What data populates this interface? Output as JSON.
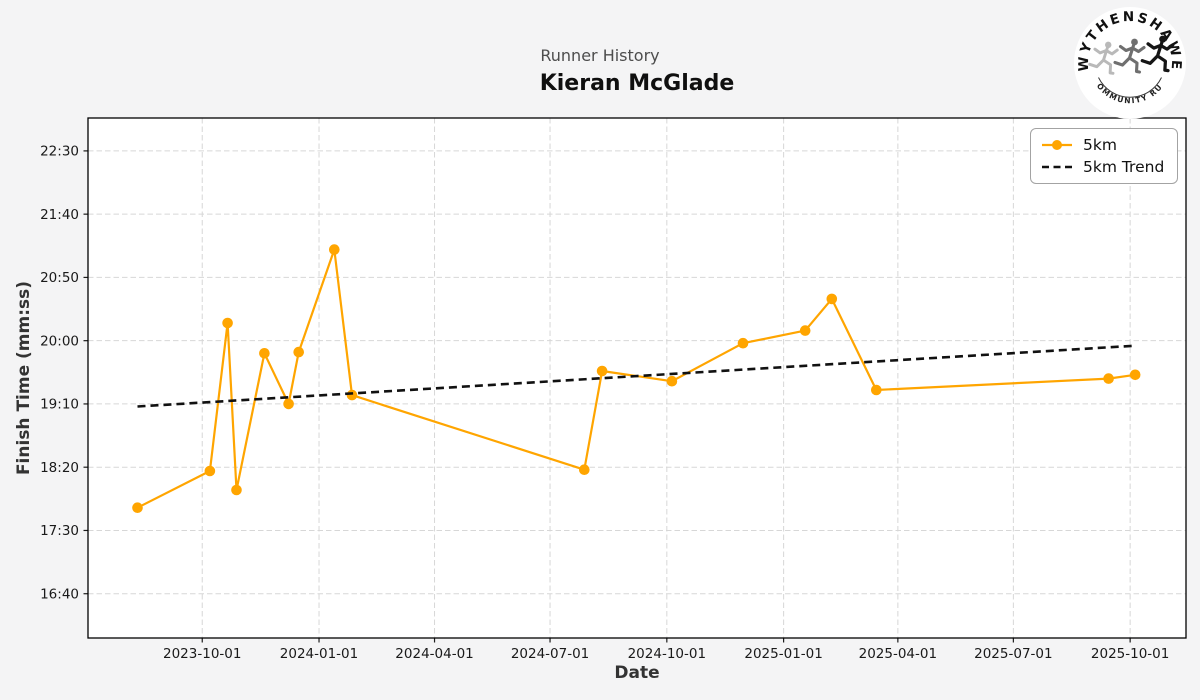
{
  "logo": {
    "top_text": "WYTHENSHAWE",
    "bottom_text": "COMMUNITY RUN"
  },
  "chart_data": {
    "type": "line",
    "subtitle": "Runner History",
    "title": "Kieran McGlade",
    "xlabel": "Date",
    "ylabel": "Finish Time (mm:ss)",
    "background_color": "#f4f4f5",
    "grid": true,
    "legend_position": "upper right",
    "xlim": [
      "2023-07-03",
      "2025-11-14"
    ],
    "ylim_mmss": [
      "16:05",
      "22:56"
    ],
    "x_ticks": [
      "2023-10-01",
      "2024-01-01",
      "2024-04-01",
      "2024-07-01",
      "2024-10-01",
      "2025-01-01",
      "2025-04-01",
      "2025-07-01",
      "2025-10-01"
    ],
    "y_ticks": [
      "16:40",
      "17:30",
      "18:20",
      "19:10",
      "20:00",
      "20:50",
      "21:40",
      "22:30"
    ],
    "series": [
      {
        "name": "5km",
        "color": "#FFA500",
        "style": "solid",
        "marker": "circle",
        "points": [
          {
            "date": "2023-08-11",
            "time": "17:48"
          },
          {
            "date": "2023-10-07",
            "time": "18:17"
          },
          {
            "date": "2023-10-21",
            "time": "20:14"
          },
          {
            "date": "2023-10-28",
            "time": "18:02"
          },
          {
            "date": "2023-11-19",
            "time": "19:50"
          },
          {
            "date": "2023-12-08",
            "time": "19:10"
          },
          {
            "date": "2023-12-16",
            "time": "19:51"
          },
          {
            "date": "2024-01-13",
            "time": "21:12"
          },
          {
            "date": "2024-01-27",
            "time": "19:17"
          },
          {
            "date": "2024-07-28",
            "time": "18:18"
          },
          {
            "date": "2024-08-11",
            "time": "19:36"
          },
          {
            "date": "2024-10-05",
            "time": "19:28"
          },
          {
            "date": "2024-11-30",
            "time": "19:58"
          },
          {
            "date": "2025-01-18",
            "time": "20:08"
          },
          {
            "date": "2025-02-08",
            "time": "20:33"
          },
          {
            "date": "2025-03-15",
            "time": "19:21"
          },
          {
            "date": "2025-09-14",
            "time": "19:30"
          },
          {
            "date": "2025-10-05",
            "time": "19:33"
          }
        ]
      },
      {
        "name": "5km Trend",
        "color": "#111111",
        "style": "dashed",
        "marker": "none",
        "points": [
          {
            "date": "2023-08-11",
            "time": "19:08"
          },
          {
            "date": "2025-10-05",
            "time": "19:56"
          }
        ]
      }
    ]
  }
}
